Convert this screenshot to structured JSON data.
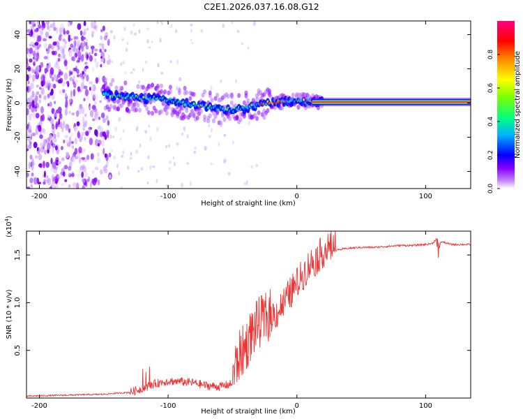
{
  "figure_title": "C2E1.2026.037.16.08.G12",
  "chart_data": [
    {
      "type": "heatmap",
      "title": "C2E1.2026.037.16.08.G12",
      "xlabel": "Height of straight line (km)",
      "ylabel": "Frequency (Hz)",
      "xlim": [
        -210,
        135
      ],
      "ylim": [
        -50,
        48
      ],
      "xticks": [
        -200,
        -100,
        0,
        100
      ],
      "yticks": [
        -40,
        -20,
        0,
        20,
        40
      ],
      "tick_labels_x": [
        "-200",
        "-100",
        "0",
        "100"
      ],
      "tick_labels_y": [
        "-40",
        "-20",
        "0",
        "20",
        "40"
      ],
      "colorbar": {
        "label": "Normalized spectral amplitude",
        "range": [
          0,
          1
        ],
        "ticks": [
          0.0,
          0.2,
          0.4,
          0.6,
          0.8
        ],
        "tick_labels": [
          "0.0",
          "0.2",
          "0.4",
          "0.6",
          "0.8"
        ],
        "colors": [
          "#ffffff",
          "#8a00ff",
          "#0000ff",
          "#00c8ff",
          "#00ff80",
          "#80ff00",
          "#ffff00",
          "#ff8000",
          "#ff0000",
          "#ff0080"
        ]
      },
      "signal_centerline_hz": [
        [
          -150,
          5
        ],
        [
          -120,
          3
        ],
        [
          -100,
          2
        ],
        [
          -90,
          0
        ],
        [
          -80,
          -1
        ],
        [
          -70,
          -2
        ],
        [
          -60,
          -3
        ],
        [
          -50,
          -4
        ],
        [
          -40,
          -3
        ],
        [
          -30,
          -1
        ],
        [
          -20,
          0
        ],
        [
          -10,
          1
        ],
        [
          0,
          1
        ],
        [
          10,
          1
        ],
        [
          20,
          1
        ],
        [
          135,
          0
        ]
      ],
      "noise_region_km": [
        -210,
        -145
      ]
    },
    {
      "type": "line",
      "xlabel": "Height of straight line (km)",
      "ylabel": "SNR (10 * v/v)",
      "y_scale_label": "(x10^4)",
      "xlim": [
        -210,
        135
      ],
      "ylim": [
        0,
        1.75
      ],
      "xticks": [
        -200,
        -100,
        0,
        100
      ],
      "yticks": [
        0.5,
        1.0,
        1.5
      ],
      "tick_labels_x": [
        "-200",
        "-100",
        "0",
        "100"
      ],
      "tick_labels_y": [
        "0.5",
        "1.0",
        "1.5"
      ],
      "color": "#ee3333",
      "series": [
        {
          "name": "SNR",
          "x": [
            -210,
            -180,
            -150,
            -130,
            -120,
            -110,
            -100,
            -90,
            -80,
            -70,
            -60,
            -50,
            -45,
            -40,
            -35,
            -30,
            -25,
            -20,
            -15,
            -10,
            -5,
            0,
            5,
            10,
            15,
            20,
            25,
            30,
            40,
            50,
            60,
            70,
            80,
            90,
            100,
            105,
            108,
            110,
            112,
            120,
            135
          ],
          "y": [
            0.02,
            0.03,
            0.04,
            0.06,
            0.1,
            0.15,
            0.18,
            0.17,
            0.16,
            0.13,
            0.12,
            0.15,
            0.35,
            0.45,
            0.6,
            0.7,
            0.75,
            0.8,
            0.85,
            0.95,
            1.05,
            1.15,
            1.25,
            1.35,
            1.4,
            1.48,
            1.52,
            1.55,
            1.57,
            1.58,
            1.58,
            1.59,
            1.6,
            1.6,
            1.61,
            1.62,
            1.66,
            1.55,
            1.64,
            1.61,
            1.61
          ]
        }
      ]
    }
  ]
}
